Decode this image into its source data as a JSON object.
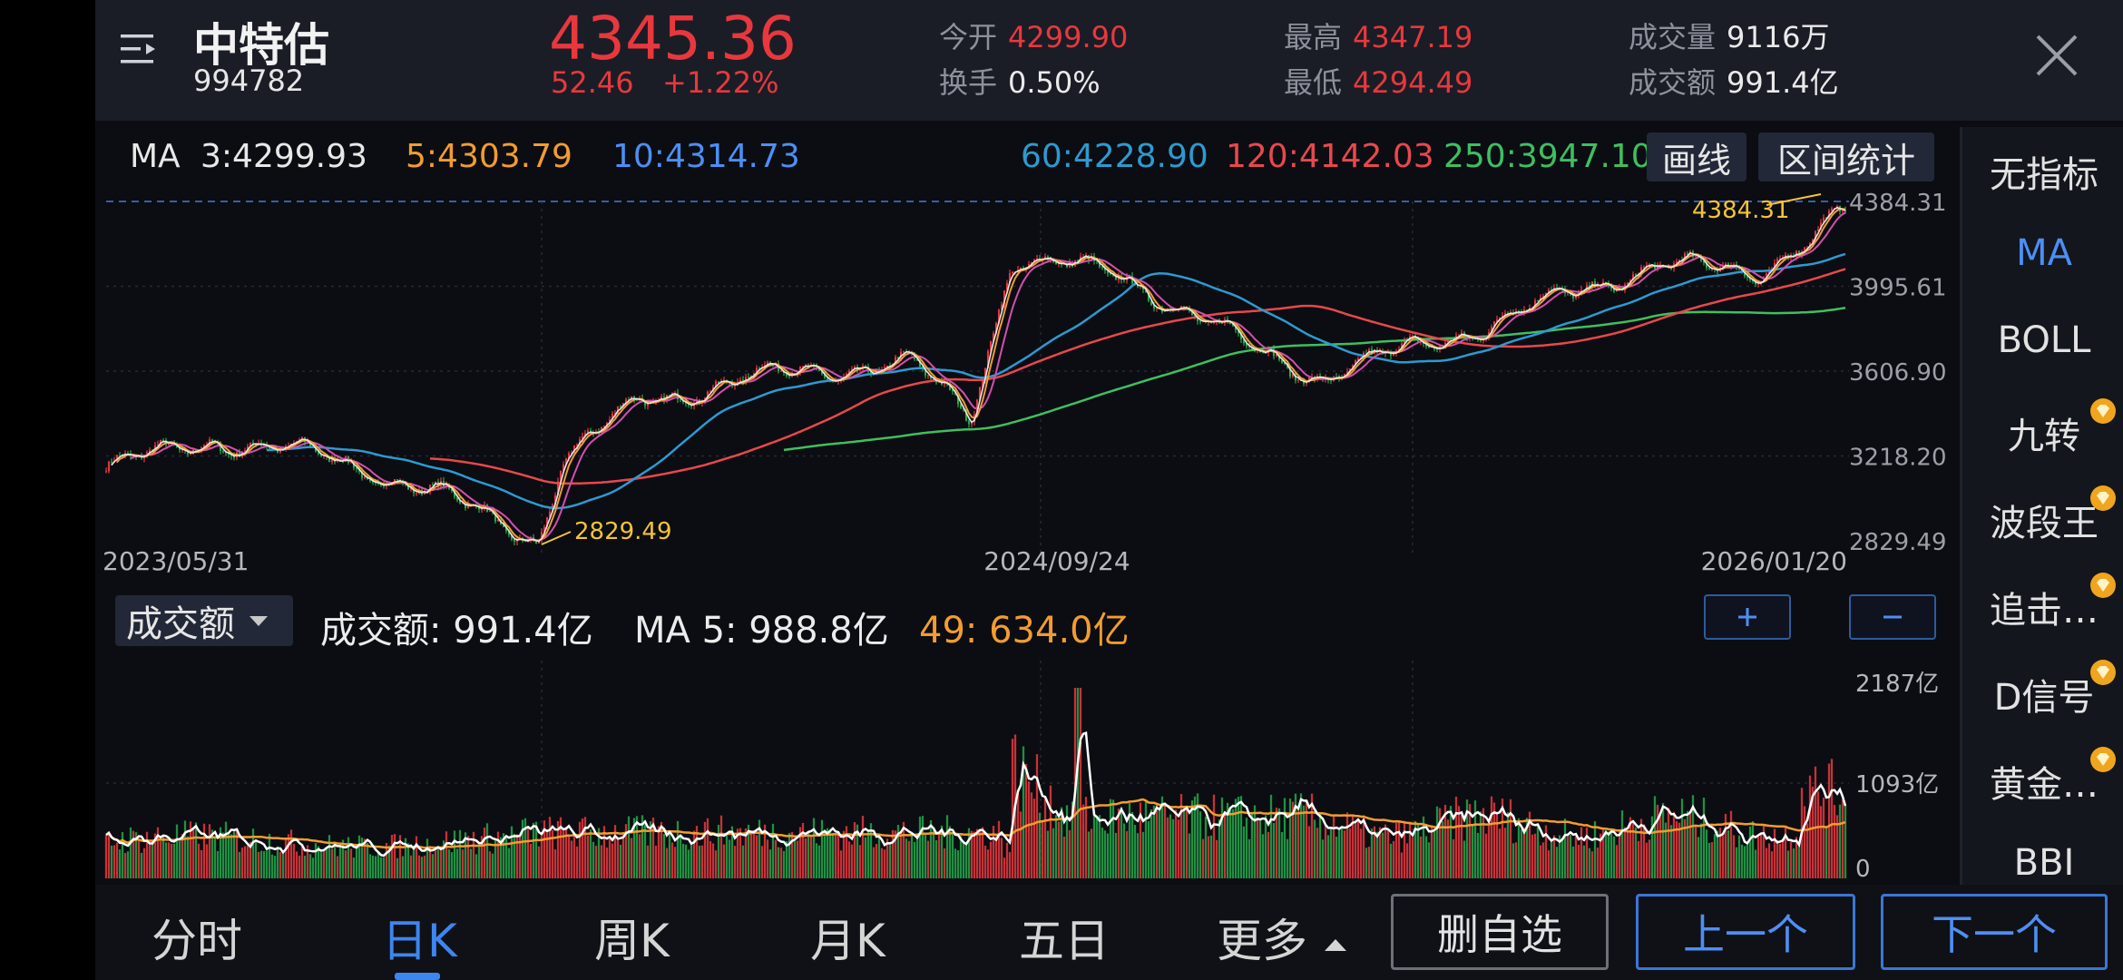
{
  "header": {
    "name": "中特估",
    "code": "994782",
    "price": "4345.36",
    "change": "52.46",
    "change_pct": "+1.22%",
    "open_label": "今开",
    "open": "4299.90",
    "turnover_label": "换手",
    "turnover": "0.50%",
    "high_label": "最高",
    "high": "4347.19",
    "low_label": "最低",
    "low": "4294.49",
    "volume_label": "成交量",
    "volume": "9116万",
    "amount_label": "成交额",
    "amount": "991.4亿"
  },
  "ma_bar": {
    "label": "MA",
    "items": [
      {
        "text": "3:4299.93",
        "color": "#e8e8e8"
      },
      {
        "text": "5:4303.79",
        "color": "#f39c2f"
      },
      {
        "text": "10:4314.73",
        "color": "#4c8ff4"
      },
      {
        "text": "60:4228.90",
        "color": "#2d9ad0"
      },
      {
        "text": "120:4142.03",
        "color": "#e8484d"
      },
      {
        "text": "250:3947.10",
        "color": "#3fbf5f"
      }
    ],
    "draw_btn": "画线",
    "range_btn": "区间统计"
  },
  "main_chart": {
    "y_ticks": [
      "4384.31",
      "3995.61",
      "3606.90",
      "3218.20",
      "2829.49"
    ],
    "x_ticks": [
      "2023/05/31",
      "2024/09/24",
      "2026/01/20"
    ],
    "max_label": "4384.31",
    "min_label": "2829.49"
  },
  "volume": {
    "selector": "成交额",
    "amount_text": "成交额: 991.4亿",
    "ma5_text": "MA 5: 988.8亿",
    "ma49_text": "49: 634.0亿",
    "y_ticks": [
      "2187亿",
      "1093亿",
      "0"
    ]
  },
  "sidebar": {
    "items": [
      {
        "label": "无指标",
        "active": false,
        "vip": false
      },
      {
        "label": "MA",
        "active": true,
        "vip": false
      },
      {
        "label": "BOLL",
        "active": false,
        "vip": false
      },
      {
        "label": "九转",
        "active": false,
        "vip": true
      },
      {
        "label": "波段王",
        "active": false,
        "vip": true
      },
      {
        "label": "追击…",
        "active": false,
        "vip": true
      },
      {
        "label": "D信号",
        "active": false,
        "vip": true
      },
      {
        "label": "黄金…",
        "active": false,
        "vip": true
      },
      {
        "label": "BBI",
        "active": false,
        "vip": false
      }
    ]
  },
  "tabs": [
    {
      "label": "分时",
      "active": false
    },
    {
      "label": "日K",
      "active": true
    },
    {
      "label": "周K",
      "active": false
    },
    {
      "label": "月K",
      "active": false
    },
    {
      "label": "五日",
      "active": false
    },
    {
      "label": "更多",
      "active": false
    }
  ],
  "bottom_buttons": {
    "remove": "删自选",
    "prev": "上一个",
    "next": "下一个"
  },
  "chart_data": {
    "type": "candlestick",
    "y_range": [
      2829.49,
      4384.31
    ],
    "anchors": [
      {
        "x": "2023/05/31",
        "close": 3150
      },
      {
        "x": "2023/07",
        "close": 3290
      },
      {
        "x": "2023/09",
        "close": 3210
      },
      {
        "x": "2023/11",
        "close": 3040
      },
      {
        "x": "2024/02",
        "close": 2829.49
      },
      {
        "x": "2024/02",
        "close": 3200
      },
      {
        "x": "2024/04",
        "close": 3470
      },
      {
        "x": "2024/06",
        "close": 3600
      },
      {
        "x": "2024/08",
        "close": 3640
      },
      {
        "x": "2024/09/24",
        "close": 3400
      },
      {
        "x": "2024/10",
        "close": 4120
      },
      {
        "x": "2024/12",
        "close": 4050
      },
      {
        "x": "2025/03",
        "close": 3700
      },
      {
        "x": "2025/04",
        "close": 3580
      },
      {
        "x": "2025/07",
        "close": 3800
      },
      {
        "x": "2025/09",
        "close": 4100
      },
      {
        "x": "2025/11",
        "close": 4050
      },
      {
        "x": "2026/01/20",
        "close": 4345.36
      }
    ],
    "volume_range": [
      0,
      2187
    ]
  }
}
